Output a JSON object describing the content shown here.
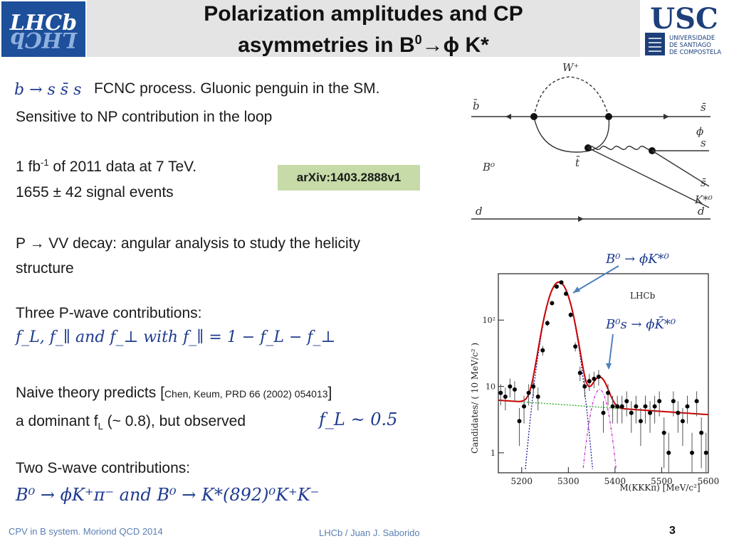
{
  "header": {
    "title_line1": "Polarization amplitudes and CP",
    "title_line2_prefix": "asymmetries in B",
    "title_line2_sup": "0",
    "title_line2_suffix": "→ϕ K*",
    "left_logo_text": "LHCb",
    "right_logo_text": "USC",
    "right_logo_sub1": "UNIVERSIDADE",
    "right_logo_sub2": "DE SANTIAGO",
    "right_logo_sub3": "DE COMPOSTELA"
  },
  "body": {
    "process_math": "b → s s̄ s",
    "process_text": "FCNC process. Gluonic penguin in the SM.",
    "sensitive_text": "Sensitive to NP contribution in the loop",
    "lumi_prefix": "1 fb",
    "lumi_sup": "-1",
    "lumi_suffix": " of 2011 data at 7 TeV.",
    "events_text": "1655 ± 42 signal events",
    "arxiv": "arXiv:1403.2888v1",
    "decay_line1": "P → VV decay: angular analysis to study the helicity",
    "decay_line2": "structure",
    "pwave_title": "Three P-wave contributions:",
    "pwave_math": "f_L, f_∥  and  f_⊥  with  f_∥ = 1 − f_L − f_⊥",
    "naive_prefix": "Naive theory predicts [",
    "naive_ref": "Chen, Keum, PRD 66 (2002) 054013",
    "naive_suffix": "]",
    "dominant_prefix": "a dominant f",
    "dominant_sub": "L",
    "dominant_suffix": " (~ 0.8),  but observed",
    "observed_math": "f_L ~ 0.5",
    "swave_title": "Two S-wave contributions:",
    "swave_math": "B⁰ → ϕK⁺π⁻  and  B⁰ → K*(892)⁰K⁺K⁻"
  },
  "feynman": {
    "w_label": "W⁺",
    "bbar": "b̄",
    "sbar1": "s̄",
    "phi": "ϕ",
    "s": "s",
    "tbar": "t̄",
    "b0": "B⁰",
    "sbar2": "s̄",
    "kstar": "K*⁰",
    "d1": "d",
    "d2": "d"
  },
  "plot": {
    "annot_b0": "B⁰ → ϕK*⁰",
    "annot_bs": "B⁰s → ϕK̄*⁰",
    "lhcb_label": "LHCb",
    "ylabel": "Candidates/ ( 10 MeV/c² )",
    "xlabel": "M(KKKπ) [MeV/c²]",
    "yticks": [
      "1",
      "10",
      "10²"
    ],
    "xticks": [
      "5200",
      "5300",
      "5400",
      "5500",
      "5600"
    ]
  },
  "chart_data": {
    "type": "scatter",
    "xlabel": "M(KKKπ) [MeV/c²]",
    "ylabel": "Candidates/ ( 10 MeV/c² )",
    "xlim": [
      5150,
      5600
    ],
    "ylim": [
      0.5,
      500
    ],
    "log_y": true,
    "x": [
      5155,
      5165,
      5175,
      5185,
      5195,
      5205,
      5215,
      5225,
      5235,
      5245,
      5255,
      5265,
      5275,
      5285,
      5295,
      5305,
      5315,
      5325,
      5335,
      5345,
      5355,
      5365,
      5375,
      5385,
      5395,
      5405,
      5415,
      5425,
      5435,
      5445,
      5455,
      5465,
      5475,
      5485,
      5495,
      5505,
      5515,
      5525,
      5535,
      5545,
      5555,
      5565,
      5575,
      5585,
      5595
    ],
    "y": [
      8,
      7,
      10,
      9,
      3,
      5,
      8,
      10,
      7,
      35,
      90,
      180,
      320,
      370,
      250,
      120,
      40,
      16,
      10,
      12,
      13,
      14,
      4,
      8,
      5,
      5,
      5,
      6,
      4,
      5,
      3,
      5,
      4,
      5,
      6,
      2,
      1,
      6,
      4,
      3,
      5,
      1,
      6,
      2,
      1
    ],
    "fit_curves": [
      {
        "color": "#cc0000"
      },
      {
        "color": "#1a1a99"
      },
      {
        "color": "#cc33cc"
      },
      {
        "color": "#22aa22"
      }
    ],
    "colors": {
      "data": "#000000",
      "total": "#cc0000",
      "b0": "#1a1a99",
      "bs": "#cc33cc",
      "bkg": "#22aa22",
      "arrow": "#4f81bd"
    }
  },
  "footer": {
    "left": "CPV in B system. Moriond QCD 2014",
    "center": "LHCb / Juan J. Saborido",
    "page": "3"
  }
}
